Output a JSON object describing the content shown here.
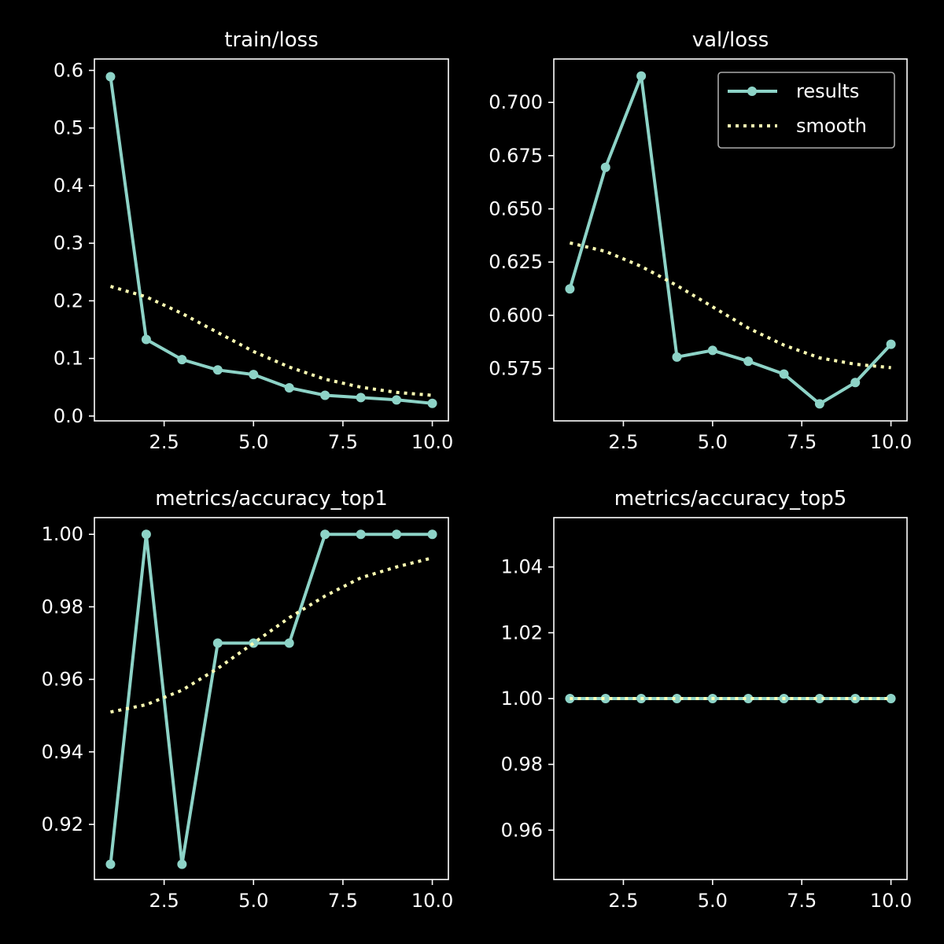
{
  "colors": {
    "background": "#000000",
    "axes": "#ffffff",
    "results": "#8dd3c7",
    "smooth": "#ffffb3",
    "legend_frame": "#aaaaaa"
  },
  "legend": {
    "placement": "upper-right of val/loss panel",
    "entries": [
      {
        "label": "results",
        "series": "results"
      },
      {
        "label": "smooth",
        "series": "smooth"
      }
    ]
  },
  "chart_data": [
    {
      "type": "line",
      "title": "train/loss",
      "xlabel": "",
      "ylabel": "",
      "xlim": [
        0.55,
        10.45
      ],
      "ylim": [
        -0.0084,
        0.6198
      ],
      "xticks": [
        {
          "v": 2.5,
          "label": "2.5"
        },
        {
          "v": 5,
          "label": "5.0"
        },
        {
          "v": 7.5,
          "label": "7.5"
        },
        {
          "v": 10,
          "label": "10.0"
        }
      ],
      "yticks": [
        {
          "v": 0,
          "label": "0.0"
        },
        {
          "v": 0.1,
          "label": "0.1"
        },
        {
          "v": 0.2,
          "label": "0.2"
        },
        {
          "v": 0.3,
          "label": "0.3"
        },
        {
          "v": 0.4,
          "label": "0.4"
        },
        {
          "v": 0.5,
          "label": "0.5"
        },
        {
          "v": 0.6,
          "label": "0.6"
        }
      ],
      "grid": false,
      "series": [
        {
          "key": "results",
          "style": "solid-markers",
          "x": [
            1,
            2,
            3,
            4,
            5,
            6,
            7,
            8,
            9,
            10
          ],
          "values": [
            0.589,
            0.133,
            0.098,
            0.08,
            0.072,
            0.049,
            0.036,
            0.032,
            0.028,
            0.022
          ]
        },
        {
          "key": "smooth",
          "style": "dotted",
          "x": [
            1,
            2,
            3,
            4,
            5,
            6,
            7,
            8,
            9,
            10
          ],
          "values": [
            0.225,
            0.207,
            0.178,
            0.145,
            0.112,
            0.085,
            0.064,
            0.05,
            0.041,
            0.036
          ]
        }
      ]
    },
    {
      "type": "line",
      "title": "val/loss",
      "xlabel": "",
      "ylabel": "",
      "xlim": [
        0.55,
        10.45
      ],
      "ylim": [
        0.5504,
        0.7204
      ],
      "xticks": [
        {
          "v": 2.5,
          "label": "2.5"
        },
        {
          "v": 5,
          "label": "5.0"
        },
        {
          "v": 7.5,
          "label": "7.5"
        },
        {
          "v": 10,
          "label": "10.0"
        }
      ],
      "yticks": [
        {
          "v": 0.575,
          "label": "0.575"
        },
        {
          "v": 0.6,
          "label": "0.600"
        },
        {
          "v": 0.625,
          "label": "0.625"
        },
        {
          "v": 0.65,
          "label": "0.650"
        },
        {
          "v": 0.675,
          "label": "0.675"
        },
        {
          "v": 0.7,
          "label": "0.700"
        }
      ],
      "grid": false,
      "series": [
        {
          "key": "results",
          "style": "solid-markers",
          "x": [
            1,
            2,
            3,
            4,
            5,
            6,
            7,
            8,
            9,
            10
          ],
          "values": [
            0.6124,
            0.6695,
            0.7124,
            0.5804,
            0.5835,
            0.5784,
            0.5724,
            0.5584,
            0.5684,
            0.5864
          ]
        },
        {
          "key": "smooth",
          "style": "dotted",
          "x": [
            1,
            2,
            3,
            4,
            5,
            6,
            7,
            8,
            9,
            10
          ],
          "values": [
            0.634,
            0.63,
            0.623,
            0.614,
            0.604,
            0.594,
            0.586,
            0.58,
            0.577,
            0.5754
          ]
        }
      ]
    },
    {
      "type": "line",
      "title": "metrics/accuracy_top1",
      "xlabel": "",
      "ylabel": "",
      "xlim": [
        0.55,
        10.45
      ],
      "ylim": [
        0.9048,
        1.0046
      ],
      "xticks": [
        {
          "v": 2.5,
          "label": "2.5"
        },
        {
          "v": 5,
          "label": "5.0"
        },
        {
          "v": 7.5,
          "label": "7.5"
        },
        {
          "v": 10,
          "label": "10.0"
        }
      ],
      "yticks": [
        {
          "v": 0.92,
          "label": "0.92"
        },
        {
          "v": 0.94,
          "label": "0.94"
        },
        {
          "v": 0.96,
          "label": "0.96"
        },
        {
          "v": 0.98,
          "label": "0.98"
        },
        {
          "v": 1.0,
          "label": "1.00"
        }
      ],
      "grid": false,
      "series": [
        {
          "key": "results",
          "style": "solid-markers",
          "x": [
            1,
            2,
            3,
            4,
            5,
            6,
            7,
            8,
            9,
            10
          ],
          "values": [
            0.909,
            1.0,
            0.909,
            0.97,
            0.97,
            0.97,
            1.0,
            1.0,
            1.0,
            1.0
          ]
        },
        {
          "key": "smooth",
          "style": "dotted",
          "x": [
            1,
            2,
            3,
            4,
            5,
            6,
            7,
            8,
            9,
            10
          ],
          "values": [
            0.951,
            0.953,
            0.957,
            0.963,
            0.97,
            0.977,
            0.983,
            0.988,
            0.991,
            0.9935
          ]
        }
      ]
    },
    {
      "type": "line",
      "title": "metrics/accuracy_top5",
      "xlabel": "",
      "ylabel": "",
      "xlim": [
        0.55,
        10.45
      ],
      "ylim": [
        0.945,
        1.055
      ],
      "xticks": [
        {
          "v": 2.5,
          "label": "2.5"
        },
        {
          "v": 5,
          "label": "5.0"
        },
        {
          "v": 7.5,
          "label": "7.5"
        },
        {
          "v": 10,
          "label": "10.0"
        }
      ],
      "yticks": [
        {
          "v": 0.96,
          "label": "0.96"
        },
        {
          "v": 0.98,
          "label": "0.98"
        },
        {
          "v": 1.0,
          "label": "1.00"
        },
        {
          "v": 1.02,
          "label": "1.02"
        },
        {
          "v": 1.04,
          "label": "1.04"
        }
      ],
      "grid": false,
      "series": [
        {
          "key": "results",
          "style": "solid-markers",
          "x": [
            1,
            2,
            3,
            4,
            5,
            6,
            7,
            8,
            9,
            10
          ],
          "values": [
            1.0,
            1.0,
            1.0,
            1.0,
            1.0,
            1.0,
            1.0,
            1.0,
            1.0,
            1.0
          ]
        },
        {
          "key": "smooth",
          "style": "dotted",
          "x": [
            1,
            2,
            3,
            4,
            5,
            6,
            7,
            8,
            9,
            10
          ],
          "values": [
            1.0,
            1.0,
            1.0,
            1.0,
            1.0,
            1.0,
            1.0,
            1.0,
            1.0,
            1.0
          ]
        }
      ]
    }
  ]
}
